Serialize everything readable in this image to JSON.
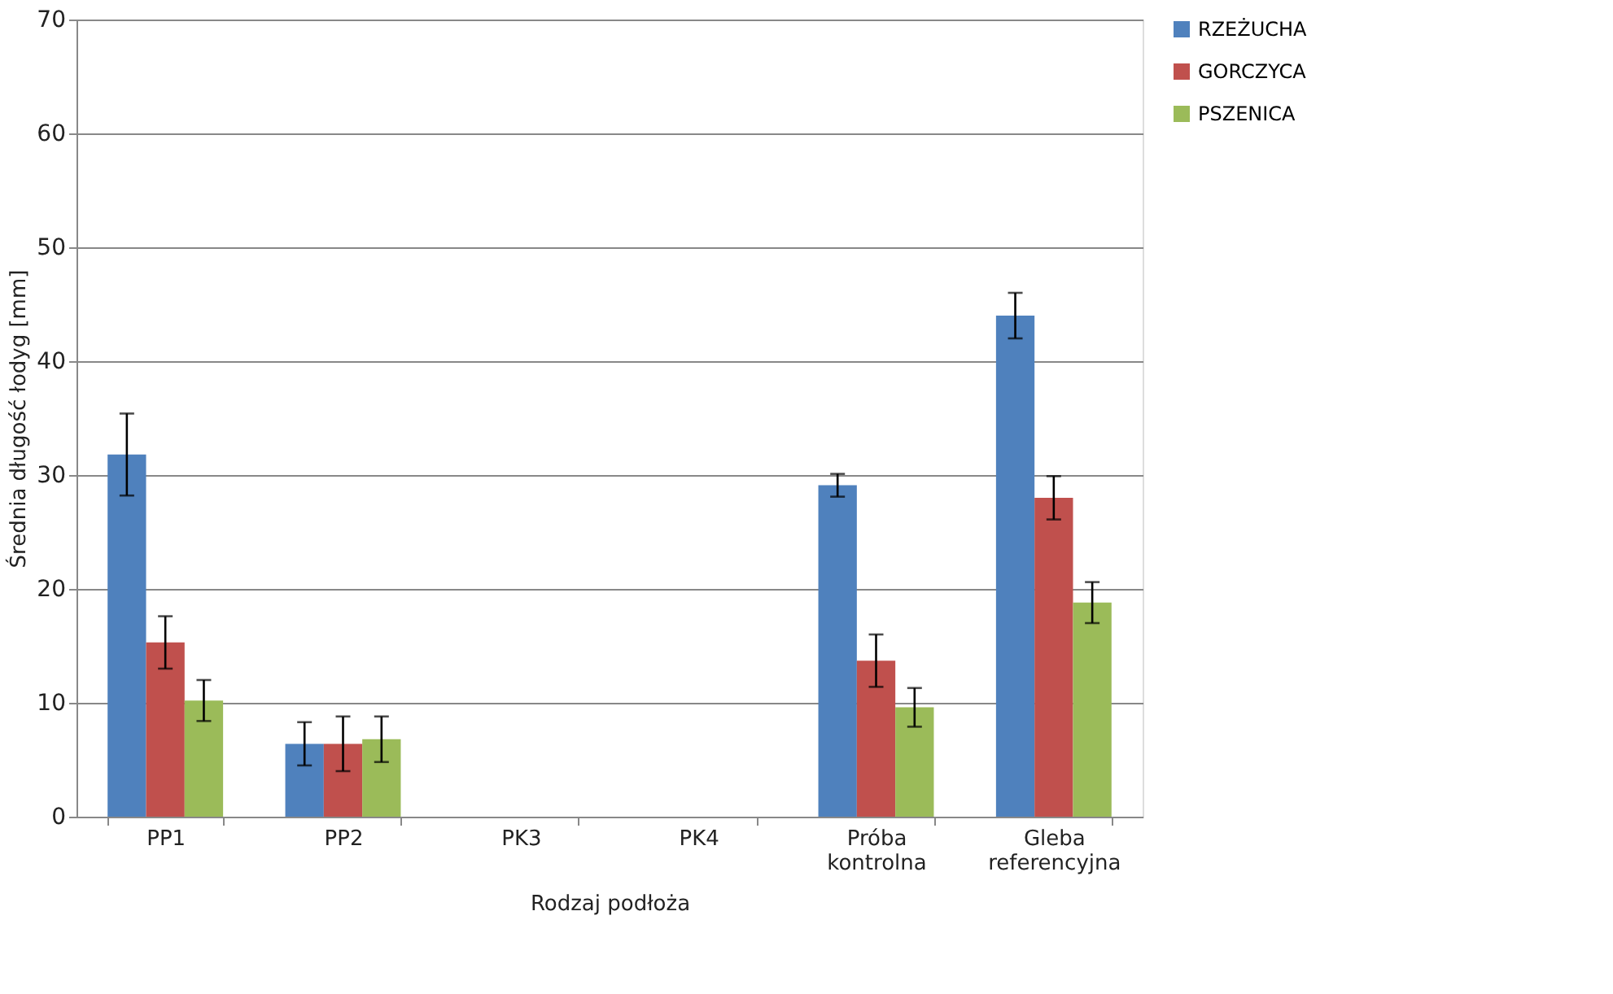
{
  "chart_data": {
    "type": "bar",
    "xlabel": "Rodzaj podłoża",
    "ylabel": "Średnia długość łodyg [mm]",
    "categories": [
      "PP1",
      "PP2",
      "PK3",
      "PK4",
      "Próba kontrolna",
      "Gleba referencyjna"
    ],
    "series": [
      {
        "name": "RZEŻUCHA",
        "color": "#4f81bd",
        "values": [
          31.8,
          6.4,
          0,
          0,
          29.1,
          44.0
        ],
        "errors": [
          3.6,
          1.9,
          null,
          null,
          1.0,
          2.0
        ]
      },
      {
        "name": "GORCZYCA",
        "color": "#c0504d",
        "values": [
          15.3,
          6.4,
          0,
          0,
          13.7,
          28.0
        ],
        "errors": [
          2.3,
          2.4,
          null,
          null,
          2.3,
          1.9
        ]
      },
      {
        "name": "PSZENICA",
        "color": "#9bbb59",
        "values": [
          10.2,
          6.8,
          0,
          0,
          9.6,
          18.8
        ],
        "errors": [
          1.8,
          2.0,
          null,
          null,
          1.7,
          1.8
        ]
      }
    ],
    "ylim": [
      0,
      70
    ],
    "yticks": [
      0,
      10,
      20,
      30,
      40,
      50,
      60,
      70
    ],
    "grid": "y",
    "legend": "right"
  }
}
